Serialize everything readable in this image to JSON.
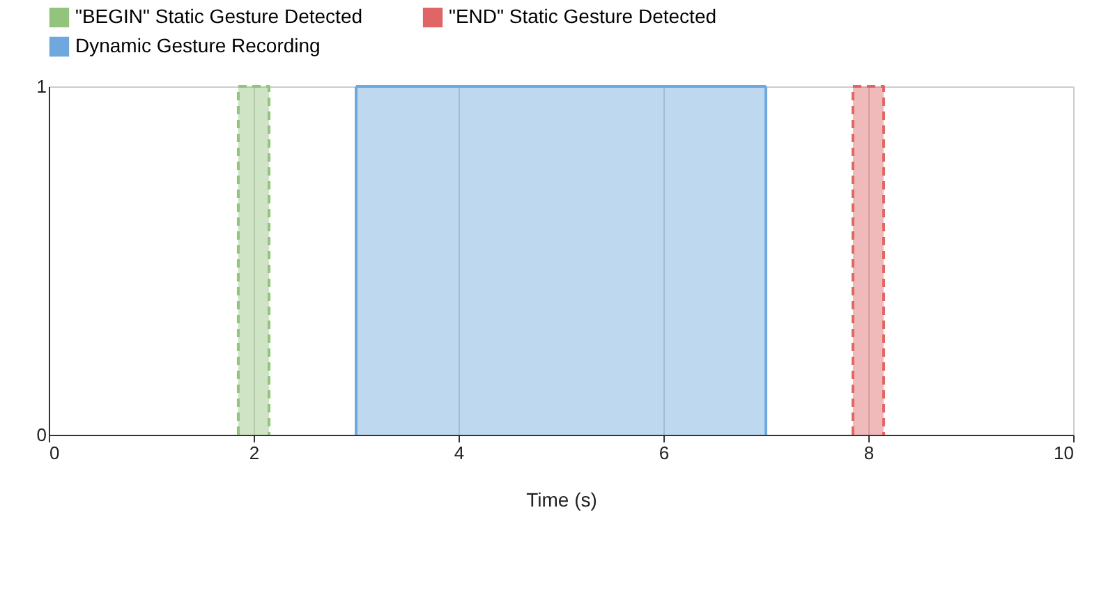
{
  "chart_data": {
    "type": "area",
    "xlabel": "Time (s)",
    "xlim": [
      0,
      10
    ],
    "xticks": [
      0,
      2,
      4,
      6,
      8,
      10
    ],
    "ylim": [
      0,
      1
    ],
    "yticks": [
      0,
      1
    ],
    "grid": true,
    "legend": "top",
    "series": [
      {
        "name": "\"BEGIN\" Static Gesture Detected",
        "color": "#93c47d",
        "line_style": "dashed",
        "x": [
          1.85,
          1.85,
          2.15,
          2.15
        ],
        "values": [
          0,
          1,
          1,
          0
        ]
      },
      {
        "name": "\"END\" Static Gesture Detected",
        "color": "#e06666",
        "line_style": "dashed",
        "x": [
          7.85,
          7.85,
          8.15,
          8.15
        ],
        "values": [
          0,
          1,
          1,
          0
        ]
      },
      {
        "name": "Dynamic Gesture Recording",
        "color": "#6fa8dc",
        "line_style": "solid",
        "x": [
          3,
          3,
          7,
          7
        ],
        "values": [
          0,
          1,
          1,
          0
        ]
      }
    ]
  }
}
